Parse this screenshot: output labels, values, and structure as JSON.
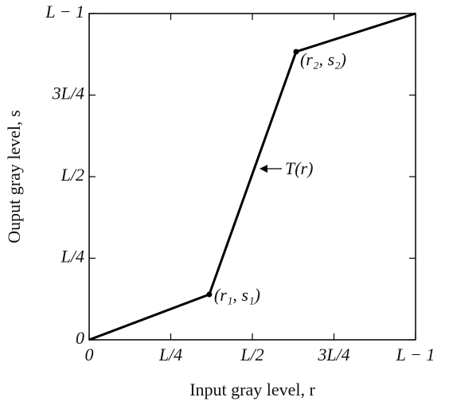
{
  "chart_data": {
    "type": "line",
    "x_label": "Input gray level, r",
    "y_label": "Ouput gray level, s",
    "x": [
      0,
      0.368,
      0.634,
      1
    ],
    "values": [
      0,
      0.139,
      0.883,
      1
    ],
    "color": "#000000",
    "xlim": [
      0,
      1
    ],
    "ylim": [
      0,
      1
    ],
    "xticks": [
      0,
      {
        "value": 0.25,
        "label": "L/4"
      },
      {
        "value": 0.5,
        "label": "L/2"
      },
      {
        "value": 0.75,
        "label": "3L/4"
      },
      {
        "value": 1,
        "label": "L − 1"
      }
    ],
    "yticks": [
      0,
      {
        "value": 0.25,
        "label": "L/4"
      },
      {
        "value": 0.5,
        "label": "L/2"
      },
      {
        "value": 0.75,
        "label": "3L/4"
      },
      {
        "value": 1,
        "label": "L − 1"
      }
    ],
    "annotations": [
      "(r₁, s₁)",
      "(r₂, s₂)",
      "T(r)"
    ]
  }
}
